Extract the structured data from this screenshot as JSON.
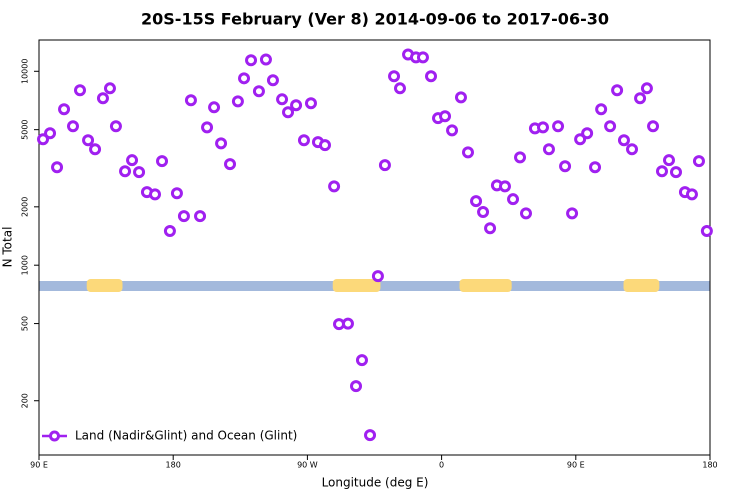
{
  "chart_data": {
    "type": "scatter",
    "title": "20S-15S February (Ver 8)   2014-09-06 to 2017-06-30",
    "x_label": "Longitude (deg E)",
    "y_label": "N Total",
    "xlim": [
      90,
      540
    ],
    "xticks": [
      {
        "value": 90,
        "label": "90 E"
      },
      {
        "value": 180,
        "label": "180"
      },
      {
        "value": 270,
        "label": "90 W"
      },
      {
        "value": 360,
        "label": "0"
      },
      {
        "value": 450,
        "label": "90 E"
      },
      {
        "value": 540,
        "label": "180"
      }
    ],
    "ylim": [
      105,
      14500
    ],
    "log_y": true,
    "yticks": [
      200,
      500,
      1000,
      2000,
      5000,
      10000
    ],
    "legend": "bottom-left",
    "ocean_color": "#a3b9dc",
    "land_color": "#fcd97a",
    "land_mask": [
      [
        122,
        146
      ],
      [
        287,
        319
      ],
      [
        372,
        407
      ],
      [
        482,
        506
      ]
    ],
    "series": [
      {
        "name": "Land (Nadir&Glint) and Ocean (Glint)",
        "color": "#a020f0",
        "x": [
          92.7,
          97.4,
          102.1,
          106.8,
          112.8,
          117.5,
          122.9,
          127.6,
          132.9,
          137.6,
          141.6,
          147.7,
          152.4,
          157.1,
          162.4,
          167.8,
          172.5,
          177.8,
          182.5,
          187.2,
          191.9,
          198.0,
          202.7,
          207.4,
          212.1,
          218.1,
          223.4,
          227.5,
          232.2,
          237.5,
          242.2,
          246.9,
          253.0,
          257.0,
          262.4,
          267.7,
          272.4,
          277.1,
          281.8,
          287.9,
          291.2,
          297.2,
          302.6,
          306.6,
          312.0,
          317.3,
          322.0,
          328.1,
          332.1,
          337.5,
          342.8,
          347.5,
          352.9,
          357.6,
          362.3,
          367.0,
          373.0,
          377.7,
          383.1,
          387.8,
          392.5,
          397.1,
          402.5,
          407.9,
          412.6,
          416.6,
          422.6,
          428.0,
          432.0,
          438.1,
          442.8,
          447.5,
          452.9,
          457.6,
          462.9,
          467.0,
          473.0,
          477.7,
          482.3,
          487.7,
          493.1,
          497.7,
          501.8,
          507.8,
          512.5,
          517.2,
          523.2,
          527.9,
          532.6,
          537.9
        ],
        "values": [
          4460,
          4790,
          3200,
          6370,
          5210,
          7980,
          4410,
          3960,
          7260,
          8170,
          5210,
          3050,
          3480,
          3020,
          2380,
          2320,
          3440,
          1500,
          2350,
          1790,
          7090,
          1790,
          5140,
          6520,
          4250,
          3320,
          7000,
          9200,
          11400,
          7890,
          11500,
          8990,
          7170,
          6150,
          6680,
          4410,
          6840,
          4310,
          4160,
          2550,
          497,
          500,
          238,
          324,
          133,
          878,
          3280,
          9430,
          8170,
          12200,
          11800,
          11800,
          9430,
          5730,
          5860,
          4960,
          7340,
          3820,
          2140,
          1880,
          1550,
          2580,
          2550,
          2190,
          3600,
          1850,
          5080,
          5140,
          3960,
          5210,
          3240,
          1850,
          4460,
          4790,
          3200,
          6370,
          5210,
          7980,
          4410,
          3960,
          7260,
          8170,
          5210,
          3050,
          3480,
          3020,
          2380,
          2320,
          3440,
          1500
        ]
      }
    ]
  }
}
